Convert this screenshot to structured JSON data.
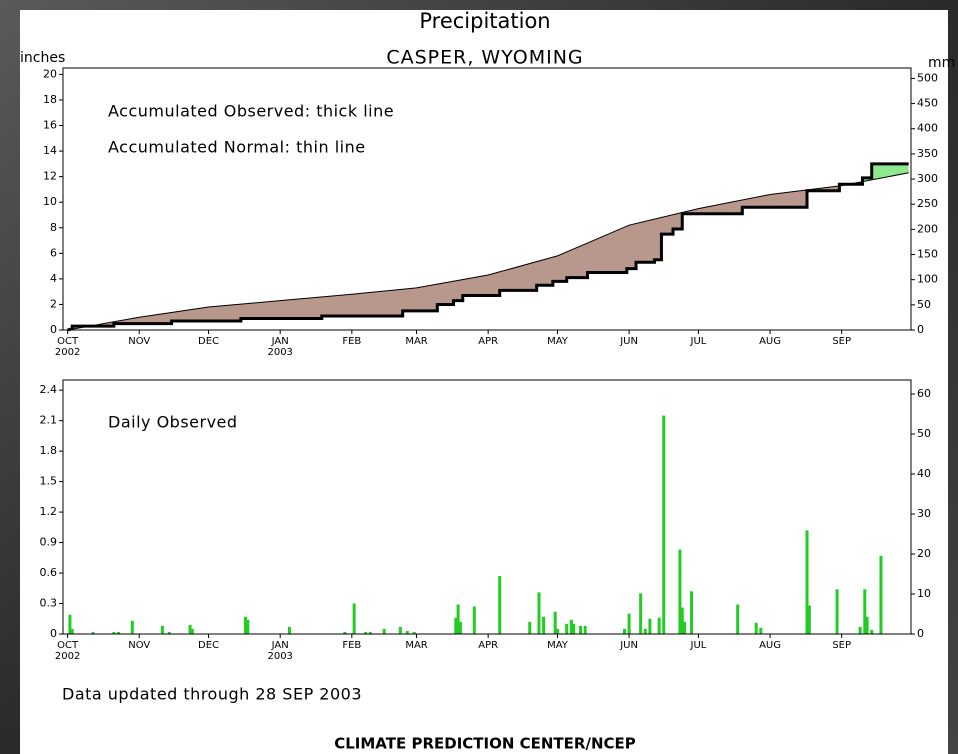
{
  "chart_data": [
    {
      "type": "line",
      "title": "Precipitation",
      "subtitle": "CASPER, WYOMING",
      "ylabel": "inches",
      "y2label": "mm",
      "annotations": [
        "Accumulated Observed: thick line",
        "Accumulated Normal: thin line"
      ],
      "xlim": [
        -2,
        365
      ],
      "xticks": [
        {
          "value": 0,
          "label": "OCT"
        },
        {
          "value": 31,
          "label": "NOV"
        },
        {
          "value": 61,
          "label": "DEC"
        },
        {
          "value": 92,
          "label": "JAN"
        },
        {
          "value": 123,
          "label": "FEB"
        },
        {
          "value": 151,
          "label": "MAR"
        },
        {
          "value": 182,
          "label": "APR"
        },
        {
          "value": 212,
          "label": "MAY"
        },
        {
          "value": 243,
          "label": "JUN"
        },
        {
          "value": 273,
          "label": "JUL"
        },
        {
          "value": 304,
          "label": "AUG"
        },
        {
          "value": 335,
          "label": "SEP"
        }
      ],
      "year_labels": [
        {
          "value": 0,
          "label": "2002"
        },
        {
          "value": 92,
          "label": "2003"
        }
      ],
      "ylim": [
        0,
        20.5
      ],
      "yticks": [
        0,
        2,
        4,
        6,
        8,
        10,
        12,
        14,
        16,
        18,
        20
      ],
      "y2lim": [
        0,
        520.7
      ],
      "y2ticks": [
        0,
        50,
        100,
        150,
        200,
        250,
        300,
        350,
        400,
        450,
        500
      ],
      "deficit_color": "#b8978c",
      "surplus_color": "#8ee88e",
      "series": [
        {
          "color": "#000000",
          "line_width": 3,
          "x": [
            0,
            2,
            2,
            20,
            20,
            45,
            45,
            75,
            75,
            110,
            110,
            145,
            145,
            160,
            160,
            167,
            167,
            171,
            171,
            187,
            187,
            203,
            203,
            210,
            210,
            216,
            216,
            225,
            225,
            242,
            242,
            246,
            246,
            254,
            254,
            257,
            257,
            262,
            262,
            266,
            266,
            292,
            292,
            320,
            320,
            334,
            334,
            344,
            344,
            348,
            348,
            364
          ],
          "values": [
            0,
            0.1,
            0.3,
            0.3,
            0.5,
            0.5,
            0.7,
            0.7,
            0.9,
            0.9,
            1.1,
            1.1,
            1.5,
            1.5,
            2,
            2,
            2.3,
            2.3,
            2.7,
            2.7,
            3.1,
            3.1,
            3.5,
            3.5,
            3.8,
            3.8,
            4.1,
            4.1,
            4.5,
            4.5,
            4.8,
            4.8,
            5.3,
            5.3,
            5.5,
            5.5,
            7.5,
            7.5,
            7.9,
            7.9,
            9.1,
            9.1,
            9.6,
            9.6,
            10.9,
            10.9,
            11.4,
            11.4,
            11.9,
            11.9,
            13,
            13
          ]
        },
        {
          "color": "#000000",
          "line_width": 1,
          "x": [
            0,
            31,
            61,
            92,
            123,
            151,
            182,
            212,
            243,
            273,
            304,
            335,
            364
          ],
          "values": [
            0,
            1,
            1.8,
            2.3,
            2.8,
            3.3,
            4.3,
            5.8,
            8.2,
            9.5,
            10.6,
            11.3,
            12.3
          ]
        }
      ]
    },
    {
      "type": "bar",
      "annotations": [
        "Daily Observed"
      ],
      "color": "#22cc22",
      "footnote": "Data updated through 28 SEP 2003",
      "source": "CLIMATE PREDICTION CENTER/NCEP",
      "xlim": [
        -2,
        365
      ],
      "xticks": [
        {
          "value": 0,
          "label": "OCT"
        },
        {
          "value": 31,
          "label": "NOV"
        },
        {
          "value": 61,
          "label": "DEC"
        },
        {
          "value": 92,
          "label": "JAN"
        },
        {
          "value": 123,
          "label": "FEB"
        },
        {
          "value": 151,
          "label": "MAR"
        },
        {
          "value": 182,
          "label": "APR"
        },
        {
          "value": 212,
          "label": "MAY"
        },
        {
          "value": 243,
          "label": "JUN"
        },
        {
          "value": 273,
          "label": "JUL"
        },
        {
          "value": 304,
          "label": "AUG"
        },
        {
          "value": 335,
          "label": "SEP"
        }
      ],
      "year_labels": [
        {
          "value": 0,
          "label": "2002"
        },
        {
          "value": 92,
          "label": "2003"
        }
      ],
      "ylim": [
        0,
        2.5
      ],
      "yticks": [
        0,
        0.3,
        0.6,
        0.9,
        1.2,
        1.5,
        1.8,
        2.1,
        2.4
      ],
      "y2lim": [
        0,
        63.5
      ],
      "y2ticks": [
        0,
        10,
        20,
        30,
        40,
        50,
        60
      ],
      "x": [
        1,
        2,
        11,
        20,
        22,
        28,
        41,
        44,
        53,
        54,
        77,
        78,
        96,
        120,
        124,
        129,
        131,
        137,
        144,
        147,
        150,
        168,
        169,
        170,
        176,
        187,
        200,
        204,
        206,
        211,
        212,
        216,
        218,
        219,
        222,
        224,
        241,
        243,
        248,
        250,
        252,
        256,
        258,
        265,
        266,
        267,
        270,
        290,
        298,
        300,
        320,
        321,
        333,
        343,
        345,
        346,
        348,
        352
      ],
      "values": [
        0.19,
        0.05,
        0.02,
        0.02,
        0.02,
        0.13,
        0.08,
        0.02,
        0.09,
        0.05,
        0.17,
        0.14,
        0.07,
        0.02,
        0.3,
        0.02,
        0.02,
        0.05,
        0.07,
        0.03,
        0.02,
        0.16,
        0.29,
        0.12,
        0.27,
        0.57,
        0.12,
        0.41,
        0.17,
        0.22,
        0.05,
        0.1,
        0.14,
        0.1,
        0.08,
        0.08,
        0.05,
        0.2,
        0.4,
        0.05,
        0.15,
        0.16,
        2.15,
        0.83,
        0.26,
        0.12,
        0.42,
        0.29,
        0.11,
        0.06,
        1.02,
        0.28,
        0.44,
        0.07,
        0.44,
        0.17,
        0.04,
        0.77
      ]
    }
  ]
}
